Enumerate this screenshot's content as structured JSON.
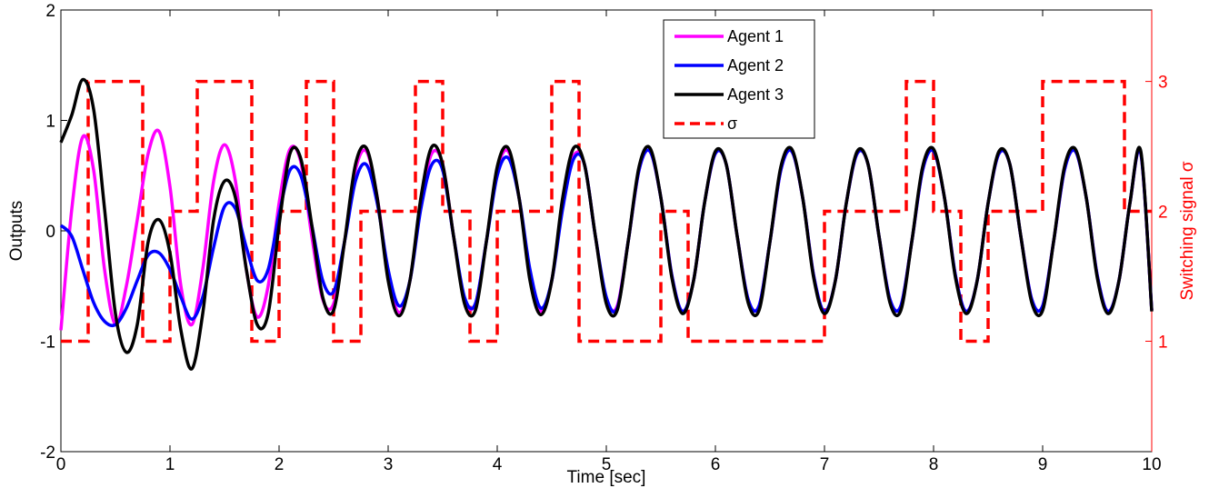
{
  "chart_data": {
    "type": "line",
    "xlabel": "Time [sec]",
    "ylabel_left": "Outputs",
    "ylabel_right": "Switching signal σ",
    "xlim": [
      0,
      10
    ],
    "ylim_left": [
      -2,
      2
    ],
    "ylim_right": [
      0.15,
      3.55
    ],
    "x_ticks": [
      0,
      1,
      2,
      3,
      4,
      5,
      6,
      7,
      8,
      9,
      10
    ],
    "y_ticks_left": [
      -2,
      -1,
      0,
      1,
      2
    ],
    "y_ticks_right": [
      1,
      2,
      3
    ],
    "grid": false,
    "legend_position": "top-center",
    "colors": {
      "agent1": "#ff00ff",
      "agent2": "#0000ff",
      "agent3": "#000000",
      "sigma": "#ff0000",
      "right_axis": "#ff0000"
    },
    "series": [
      {
        "name": "Agent 1",
        "x": [
          0.0,
          0.1,
          0.2,
          0.3,
          0.4,
          0.5,
          0.6,
          0.7,
          0.8,
          0.9,
          1.0,
          1.1,
          1.2,
          1.3,
          1.4,
          1.5,
          1.6,
          1.7,
          1.8,
          1.9,
          2.0,
          2.1,
          2.2,
          2.3,
          2.4,
          2.5,
          2.6,
          2.7,
          2.8,
          2.9,
          3.0,
          3.1,
          3.2,
          3.3,
          3.4,
          3.5,
          3.6,
          3.7,
          3.8,
          3.9,
          4.0,
          4.1,
          4.2,
          4.3,
          4.4,
          4.5,
          4.6,
          4.7,
          4.8,
          4.9,
          5.0,
          5.1,
          5.2,
          5.3,
          5.4,
          5.5,
          5.6,
          5.7,
          5.8,
          5.9,
          6.0,
          6.1,
          6.2,
          6.3,
          6.4,
          6.5,
          6.6,
          6.7,
          6.8,
          6.9,
          7.0,
          7.1,
          7.2,
          7.3,
          7.4,
          7.5,
          7.6,
          7.7,
          7.8,
          7.9,
          8.0,
          8.1,
          8.2,
          8.3,
          8.4,
          8.5,
          8.6,
          8.7,
          8.8,
          8.9,
          9.0,
          9.1,
          9.2,
          9.3,
          9.4,
          9.5,
          9.6,
          9.7,
          9.8,
          9.9,
          10.0
        ],
        "y": [
          -0.9,
          0.2,
          0.85,
          0.55,
          -0.35,
          -0.85,
          -0.5,
          0.1,
          0.7,
          0.9,
          0.4,
          -0.5,
          -0.85,
          -0.35,
          0.45,
          0.78,
          0.45,
          -0.35,
          -0.78,
          -0.5,
          0.25,
          0.74,
          0.62,
          -0.05,
          -0.62,
          -0.66,
          -0.1,
          0.55,
          0.72,
          0.3,
          -0.4,
          -0.74,
          -0.45,
          0.25,
          0.7,
          0.6,
          -0.05,
          -0.62,
          -0.66,
          -0.1,
          0.55,
          0.72,
          0.3,
          -0.4,
          -0.73,
          -0.45,
          0.25,
          0.68,
          0.6,
          -0.05,
          -0.62,
          -0.68,
          -0.1,
          0.55,
          0.72,
          0.3,
          -0.4,
          -0.73,
          -0.45,
          0.25,
          0.7,
          0.6,
          -0.05,
          -0.62,
          -0.68,
          -0.1,
          0.55,
          0.72,
          0.3,
          -0.4,
          -0.73,
          -0.45,
          0.25,
          0.7,
          0.6,
          -0.05,
          -0.62,
          -0.68,
          -0.1,
          0.55,
          0.72,
          0.3,
          -0.4,
          -0.73,
          -0.45,
          0.25,
          0.7,
          0.6,
          -0.05,
          -0.62,
          -0.68,
          -0.1,
          0.55,
          0.72,
          0.3,
          -0.4,
          -0.73,
          -0.45,
          0.25,
          0.7,
          -0.72
        ]
      },
      {
        "name": "Agent 2",
        "x": [
          0.0,
          0.1,
          0.2,
          0.3,
          0.4,
          0.5,
          0.6,
          0.7,
          0.8,
          0.9,
          1.0,
          1.1,
          1.2,
          1.3,
          1.4,
          1.5,
          1.6,
          1.7,
          1.8,
          1.9,
          2.0,
          2.1,
          2.2,
          2.3,
          2.4,
          2.5,
          2.6,
          2.7,
          2.8,
          2.9,
          3.0,
          3.1,
          3.2,
          3.3,
          3.4,
          3.5,
          3.6,
          3.7,
          3.8,
          3.9,
          4.0,
          4.1,
          4.2,
          4.3,
          4.4,
          4.5,
          4.6,
          4.7,
          4.8,
          4.9,
          5.0,
          5.1,
          5.2,
          5.3,
          5.4,
          5.5,
          5.6,
          5.7,
          5.8,
          5.9,
          6.0,
          6.1,
          6.2,
          6.3,
          6.4,
          6.5,
          6.6,
          6.7,
          6.8,
          6.9,
          7.0,
          7.1,
          7.2,
          7.3,
          7.4,
          7.5,
          7.6,
          7.7,
          7.8,
          7.9,
          8.0,
          8.1,
          8.2,
          8.3,
          8.4,
          8.5,
          8.6,
          8.7,
          8.8,
          8.9,
          9.0,
          9.1,
          9.2,
          9.3,
          9.4,
          9.5,
          9.6,
          9.7,
          9.8,
          9.9,
          10.0
        ],
        "y": [
          0.05,
          -0.05,
          -0.35,
          -0.65,
          -0.82,
          -0.85,
          -0.7,
          -0.45,
          -0.22,
          -0.2,
          -0.35,
          -0.6,
          -0.8,
          -0.6,
          -0.15,
          0.22,
          0.2,
          -0.15,
          -0.45,
          -0.35,
          0.15,
          0.55,
          0.5,
          0.05,
          -0.45,
          -0.55,
          -0.1,
          0.45,
          0.6,
          0.25,
          -0.35,
          -0.68,
          -0.45,
          0.2,
          0.6,
          0.55,
          -0.05,
          -0.6,
          -0.66,
          -0.1,
          0.5,
          0.66,
          0.3,
          -0.35,
          -0.7,
          -0.45,
          0.2,
          0.65,
          0.6,
          -0.05,
          -0.6,
          -0.7,
          -0.1,
          0.55,
          0.72,
          0.3,
          -0.4,
          -0.73,
          -0.45,
          0.25,
          0.7,
          0.6,
          -0.05,
          -0.62,
          -0.68,
          -0.1,
          0.55,
          0.72,
          0.3,
          -0.4,
          -0.73,
          -0.45,
          0.25,
          0.7,
          0.6,
          -0.05,
          -0.62,
          -0.68,
          -0.1,
          0.55,
          0.72,
          0.3,
          -0.4,
          -0.73,
          -0.45,
          0.25,
          0.7,
          0.6,
          -0.05,
          -0.62,
          -0.68,
          -0.1,
          0.55,
          0.72,
          0.3,
          -0.4,
          -0.73,
          -0.45,
          0.25,
          0.7,
          -0.72
        ]
      },
      {
        "name": "Agent 3",
        "x": [
          0.0,
          0.1,
          0.2,
          0.3,
          0.4,
          0.5,
          0.6,
          0.7,
          0.8,
          0.9,
          1.0,
          1.1,
          1.2,
          1.3,
          1.4,
          1.5,
          1.6,
          1.7,
          1.8,
          1.9,
          2.0,
          2.1,
          2.2,
          2.3,
          2.4,
          2.5,
          2.6,
          2.7,
          2.8,
          2.9,
          3.0,
          3.1,
          3.2,
          3.3,
          3.4,
          3.5,
          3.6,
          3.7,
          3.8,
          3.9,
          4.0,
          4.1,
          4.2,
          4.3,
          4.4,
          4.5,
          4.6,
          4.7,
          4.8,
          4.9,
          5.0,
          5.1,
          5.2,
          5.3,
          5.4,
          5.5,
          5.6,
          5.7,
          5.8,
          5.9,
          6.0,
          6.1,
          6.2,
          6.3,
          6.4,
          6.5,
          6.6,
          6.7,
          6.8,
          6.9,
          7.0,
          7.1,
          7.2,
          7.3,
          7.4,
          7.5,
          7.6,
          7.7,
          7.8,
          7.9,
          8.0,
          8.1,
          8.2,
          8.3,
          8.4,
          8.5,
          8.6,
          8.7,
          8.8,
          8.9,
          9.0,
          9.1,
          9.2,
          9.3,
          9.4,
          9.5,
          9.6,
          9.7,
          9.8,
          9.9,
          10.0
        ],
        "y": [
          0.8,
          1.05,
          1.37,
          1.1,
          0.2,
          -0.75,
          -1.1,
          -0.85,
          -0.1,
          0.1,
          -0.2,
          -0.9,
          -1.25,
          -0.75,
          0.1,
          0.45,
          0.3,
          -0.35,
          -0.85,
          -0.75,
          0.05,
          0.7,
          0.65,
          0.05,
          -0.6,
          -0.72,
          -0.1,
          0.6,
          0.75,
          0.3,
          -0.45,
          -0.77,
          -0.45,
          0.3,
          0.76,
          0.6,
          -0.05,
          -0.66,
          -0.72,
          -0.1,
          0.58,
          0.75,
          0.3,
          -0.45,
          -0.76,
          -0.45,
          0.3,
          0.75,
          0.6,
          -0.05,
          -0.66,
          -0.72,
          -0.1,
          0.58,
          0.75,
          0.3,
          -0.42,
          -0.75,
          -0.45,
          0.25,
          0.72,
          0.6,
          -0.05,
          -0.65,
          -0.72,
          -0.1,
          0.58,
          0.74,
          0.3,
          -0.42,
          -0.75,
          -0.45,
          0.25,
          0.72,
          0.6,
          -0.05,
          -0.65,
          -0.72,
          -0.1,
          0.58,
          0.74,
          0.3,
          -0.42,
          -0.75,
          -0.45,
          0.25,
          0.72,
          0.6,
          -0.05,
          -0.65,
          -0.72,
          -0.1,
          0.58,
          0.74,
          0.3,
          -0.42,
          -0.75,
          -0.45,
          0.25,
          0.72,
          -0.73
        ]
      },
      {
        "name": "σ",
        "axis": "right",
        "step": true,
        "x": [
          0.0,
          0.25,
          0.75,
          1.0,
          1.25,
          1.75,
          2.0,
          2.25,
          2.5,
          2.75,
          3.25,
          3.5,
          3.75,
          4.0,
          4.5,
          4.75,
          5.5,
          5.75,
          6.25,
          7.0,
          7.75,
          8.0,
          8.25,
          8.5,
          8.75,
          9.0,
          9.75,
          10.0
        ],
        "y": [
          1,
          3,
          1,
          2,
          3,
          1,
          2,
          3,
          1,
          2,
          3,
          2,
          1,
          2,
          3,
          1,
          2,
          1,
          1,
          2,
          3,
          2,
          1,
          2,
          2,
          3,
          2,
          2
        ]
      }
    ]
  }
}
